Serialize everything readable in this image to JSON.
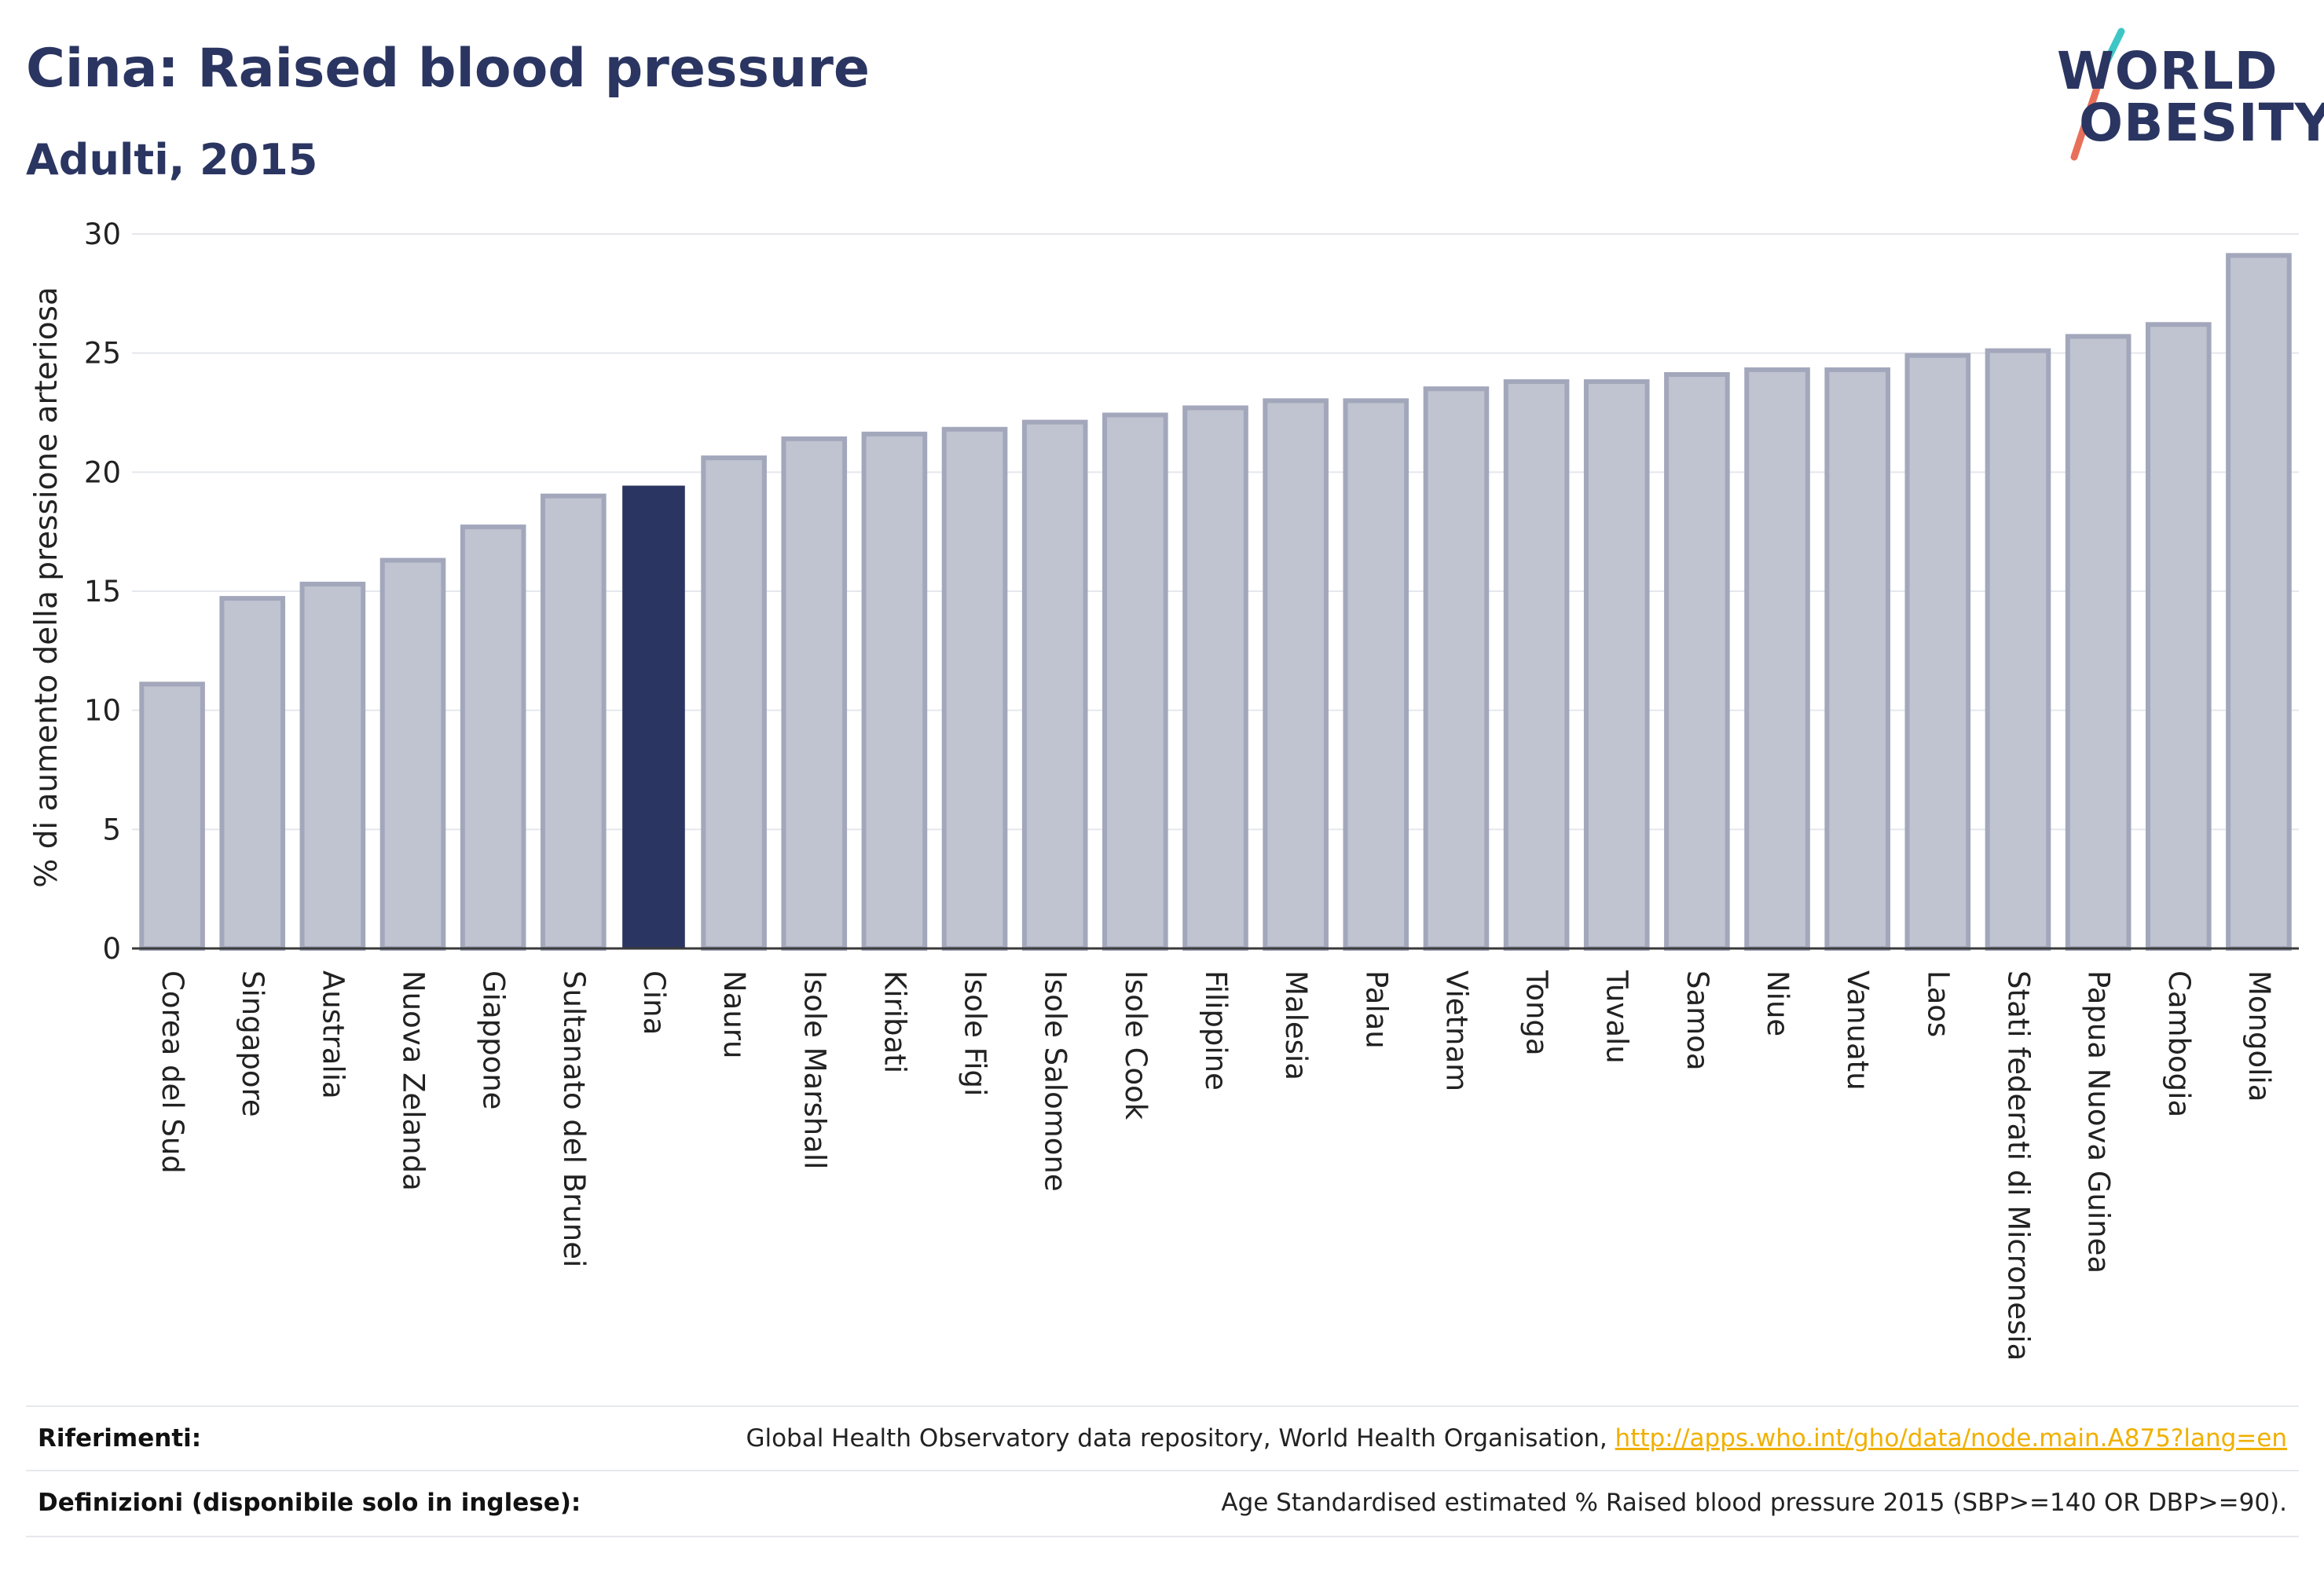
{
  "header": {
    "title": "Cina: Raised blood pressure",
    "subtitle": "Adulti, 2015"
  },
  "logo": {
    "line1": "WORLD",
    "line2": "OBESITY",
    "colors": {
      "text": "#2b3561",
      "slash_top": "#3ec6c6",
      "slash_bottom": "#e8705a"
    }
  },
  "chart_data": {
    "type": "bar",
    "title": "",
    "xlabel": "",
    "ylabel": "% di aumento della pressione arteriosa",
    "ylim": [
      0,
      30
    ],
    "yticks": [
      0,
      5,
      10,
      15,
      20,
      25,
      30
    ],
    "grid": true,
    "highlight": "Cina",
    "colors": {
      "bar": "#c0c3d0",
      "bar_border": "#a3a7bb",
      "highlight": "#2b3561",
      "grid": "#e5e7ec",
      "axis": "#3a3a3a"
    },
    "categories": [
      "Corea del Sud",
      "Singapore",
      "Australia",
      "Nuova Zelanda",
      "Giappone",
      "Sultanato del Brunei",
      "Cina",
      "Nauru",
      "Isole Marshall",
      "Kiribati",
      "Isole Figi",
      "Isole Salomone",
      "Isole Cook",
      "Filippine",
      "Malesia",
      "Palau",
      "Vietnam",
      "Tonga",
      "Tuvalu",
      "Samoa",
      "Niue",
      "Vanuatu",
      "Laos",
      "Stati federati di Micronesia",
      "Papua Nuova Guinea",
      "Cambogia",
      "Mongolia"
    ],
    "values": [
      11.1,
      14.7,
      15.3,
      16.3,
      17.7,
      19.0,
      19.4,
      20.6,
      21.4,
      21.6,
      21.8,
      22.1,
      22.4,
      22.7,
      23.0,
      23.0,
      23.5,
      23.8,
      23.8,
      24.1,
      24.3,
      24.3,
      24.9,
      25.1,
      25.7,
      26.2,
      29.1
    ]
  },
  "footer": {
    "references_label": "Riferimenti:",
    "references_text": "Global Health Observatory data repository, World Health Organisation, ",
    "references_link": "http://apps.who.int/gho/data/node.main.A875?lang=en",
    "definitions_label": "Definizioni (disponibile solo in inglese):",
    "definitions_text": "Age Standardised estimated % Raised blood pressure 2015 (SBP>=140 OR DBP>=90)."
  }
}
